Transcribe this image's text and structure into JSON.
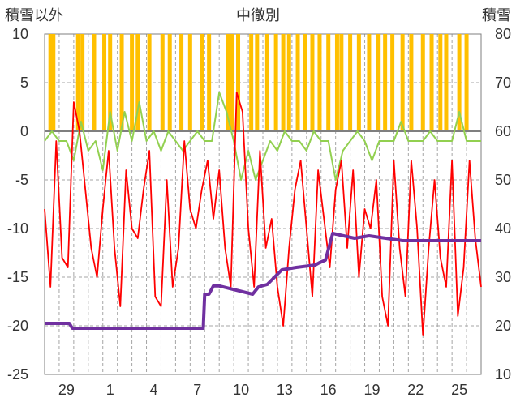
{
  "chart_data": {
    "type": "line",
    "title": "中徹別",
    "ylabel_left": "積雪以外",
    "ylabel_right": "積雪",
    "left_axis": {
      "min": -25,
      "max": 10,
      "ticks": [
        "10",
        "5",
        "0",
        "-5",
        "-10",
        "-15",
        "-20",
        "-25"
      ]
    },
    "right_axis": {
      "min": 10,
      "max": 80,
      "ticks": [
        "80",
        "70",
        "60",
        "50",
        "40",
        "30",
        "20",
        "10"
      ]
    },
    "x_ticks": [
      "29",
      "1",
      "4",
      "7",
      "10",
      "13",
      "16",
      "19",
      "22",
      "25"
    ],
    "x_tick_days": [
      1.5,
      4.5,
      7.5,
      10.5,
      13.5,
      16.5,
      19.5,
      22.5,
      25.5,
      28.5
    ],
    "x_range": [
      0,
      30
    ],
    "grid": true,
    "colors": {
      "precip": "#ffc000",
      "temperature": "#ff0000",
      "wind": "#92d050",
      "snow_depth": "#7030a0",
      "blue_marks": "#1f77b4",
      "zero_line": "#7f7f7f"
    },
    "series": [
      {
        "key": "snow_depth",
        "axis": "right",
        "x": [
          0,
          1.7,
          1.9,
          10.9,
          11.0,
          11.3,
          11.6,
          12.0,
          14.3,
          14.7,
          15.3,
          16.3,
          17.3,
          18.6,
          18.9,
          19.3,
          19.8,
          21.3,
          22.3,
          24.6,
          27.5,
          30
        ],
        "y": [
          20.5,
          20.5,
          19.5,
          19.5,
          26.5,
          26.5,
          28.2,
          28.2,
          26.5,
          28.0,
          28.5,
          31.5,
          32.0,
          32.5,
          33.0,
          33.5,
          39.0,
          38.0,
          38.5,
          37.5,
          37.5,
          37.5
        ]
      },
      {
        "key": "temperature",
        "axis": "left",
        "x": [
          0,
          0.4,
          0.8,
          1.2,
          1.6,
          2.0,
          2.4,
          2.8,
          3.2,
          3.6,
          4.0,
          4.4,
          4.8,
          5.2,
          5.6,
          6.0,
          6.4,
          6.8,
          7.2,
          7.6,
          8.0,
          8.4,
          8.8,
          9.2,
          9.6,
          10.0,
          10.4,
          10.8,
          11.2,
          11.6,
          12.0,
          12.4,
          12.8,
          13.2,
          13.6,
          14.0,
          14.4,
          14.8,
          15.2,
          15.6,
          16.0,
          16.4,
          16.8,
          17.2,
          17.6,
          18.0,
          18.4,
          18.8,
          19.2,
          19.6,
          20.0,
          20.4,
          20.8,
          21.2,
          21.6,
          22.0,
          22.4,
          22.8,
          23.2,
          23.6,
          24.0,
          24.4,
          24.8,
          25.2,
          25.6,
          26.0,
          26.4,
          26.8,
          27.2,
          27.6,
          28.0,
          28.4,
          28.8,
          29.2,
          29.6,
          30
        ],
        "y": [
          -8,
          -16,
          -1,
          -13,
          -14,
          3,
          0,
          -6,
          -12,
          -15,
          -8,
          -2,
          -12,
          -18,
          -4,
          -10,
          -11,
          -6,
          -2,
          -17,
          -18,
          -5,
          -16,
          -12,
          -1,
          -8,
          -10,
          -6,
          -3,
          -9,
          -4,
          -12,
          -16,
          4,
          2,
          -10,
          -16,
          -2,
          -12,
          -9,
          -16,
          -20,
          -12,
          -6,
          -3,
          -10,
          -17,
          -4,
          -9,
          -14,
          -6,
          -3,
          -12,
          -4,
          -15,
          -8,
          -10,
          -5,
          -17,
          -20,
          -3,
          -12,
          -17,
          -3,
          -10,
          -21,
          -12,
          -5,
          -13,
          -16,
          -3,
          -19,
          -14,
          -3,
          -11,
          -16
        ]
      },
      {
        "key": "wind",
        "axis": "left",
        "x": [
          0,
          0.5,
          1.0,
          1.5,
          2.0,
          2.5,
          3.0,
          3.5,
          4.0,
          4.5,
          5.0,
          5.5,
          6.0,
          6.5,
          7.0,
          7.5,
          8.0,
          8.5,
          9.0,
          9.5,
          10.0,
          10.5,
          11.0,
          11.5,
          12.0,
          12.5,
          13.0,
          13.5,
          14.0,
          14.5,
          15.0,
          15.5,
          16.0,
          16.5,
          17.0,
          17.5,
          18.0,
          18.5,
          19.0,
          19.5,
          20.0,
          20.5,
          21.0,
          21.5,
          22.0,
          22.5,
          23.0,
          23.5,
          24.0,
          24.5,
          25.0,
          25.5,
          26.0,
          26.5,
          27.0,
          27.5,
          28.0,
          28.5,
          29.0,
          29.5,
          30
        ],
        "y": [
          -1,
          0,
          -1,
          -1,
          -3,
          1,
          -2,
          -1,
          -4,
          2,
          -2,
          2,
          -1,
          3,
          -1,
          0,
          -2,
          0,
          -1,
          -2,
          -1,
          0,
          -1,
          -1,
          4,
          2,
          -1,
          -5,
          -2,
          -5,
          -3,
          -1,
          -2,
          0,
          -1,
          -1,
          -2,
          0,
          -1,
          -1,
          -5,
          -2,
          -1,
          0,
          -1,
          -3,
          -1,
          -1,
          -1,
          1,
          -1,
          -1,
          -1,
          0,
          -1,
          -1,
          -1,
          2,
          -1,
          -1,
          -1
        ]
      },
      {
        "key": "precip",
        "axis": "left",
        "bars_x": [
          0.4,
          0.6,
          2.3,
          2.6,
          3.4,
          4.1,
          4.5,
          5.3,
          6.0,
          6.4,
          7.2,
          8.1,
          8.6,
          9.4,
          10.0,
          10.8,
          11.3,
          12.6,
          12.9,
          13.3,
          14.2,
          14.6,
          15.3,
          15.9,
          16.4,
          16.8,
          17.4,
          17.9,
          18.4,
          18.9,
          19.5,
          20.1,
          20.4,
          21.0,
          21.6,
          22.3,
          22.9,
          23.4,
          23.9,
          24.6,
          25.2,
          26.0,
          26.6,
          27.2,
          27.6,
          28.5,
          29.0
        ]
      }
    ]
  }
}
